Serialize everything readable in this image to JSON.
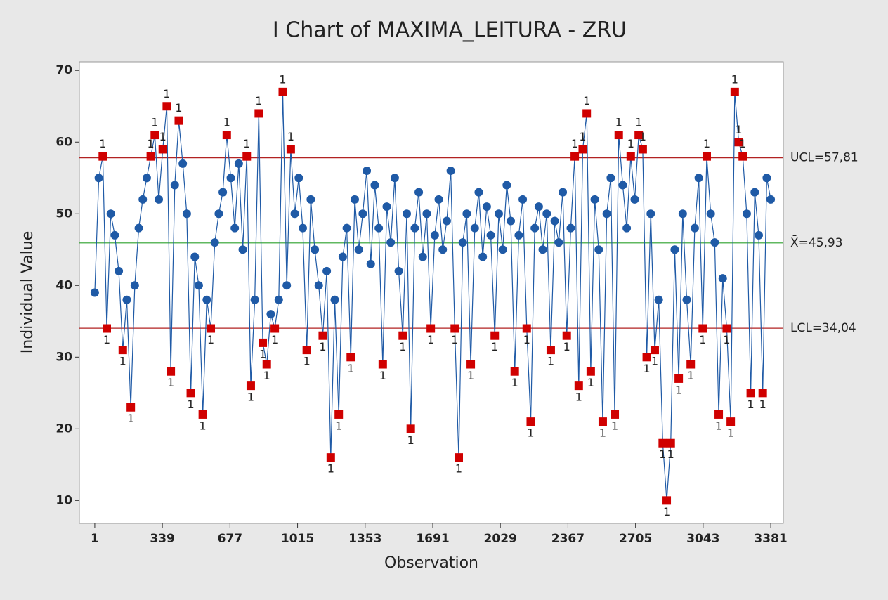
{
  "chart_data": {
    "type": "control",
    "title": "I Chart of MAXIMA_LEITURA - ZRU",
    "x_label": "Observation",
    "y_label": "Individual Value",
    "color": "#1f5aa6",
    "out_color": "#d00000",
    "flag_label": "1",
    "xlim": [
      -76,
      3444
    ],
    "ylim": [
      6.8,
      71.2
    ],
    "xticks": [
      1,
      339,
      677,
      1015,
      1353,
      1691,
      2029,
      2367,
      2705,
      3043,
      3381
    ],
    "yticks": [
      10,
      20,
      30,
      40,
      50,
      60,
      70
    ],
    "limits": [
      {
        "value": 57.81,
        "label": "UCL=57,81",
        "color": "#b22222"
      },
      {
        "value": 45.93,
        "label": "X̄=45,93",
        "color": "#2ca02c"
      },
      {
        "value": 34.04,
        "label": "LCL=34,04",
        "color": "#b22222"
      }
    ],
    "x": [
      1,
      21,
      41,
      61,
      81,
      101,
      121,
      141,
      161,
      181,
      201,
      221,
      241,
      261,
      281,
      301,
      321,
      341,
      361,
      381,
      401,
      421,
      441,
      461,
      481,
      501,
      521,
      541,
      561,
      581,
      601,
      621,
      641,
      661,
      681,
      701,
      721,
      741,
      761,
      781,
      801,
      821,
      841,
      861,
      881,
      901,
      921,
      941,
      961,
      981,
      1001,
      1021,
      1041,
      1061,
      1081,
      1101,
      1121,
      1141,
      1161,
      1181,
      1201,
      1221,
      1241,
      1261,
      1281,
      1301,
      1321,
      1341,
      1361,
      1381,
      1401,
      1421,
      1441,
      1461,
      1481,
      1501,
      1521,
      1541,
      1561,
      1581,
      1601,
      1621,
      1641,
      1661,
      1681,
      1701,
      1721,
      1741,
      1761,
      1781,
      1801,
      1821,
      1841,
      1861,
      1881,
      1901,
      1921,
      1941,
      1961,
      1981,
      2001,
      2021,
      2041,
      2061,
      2081,
      2101,
      2121,
      2141,
      2161,
      2181,
      2201,
      2221,
      2241,
      2261,
      2281,
      2301,
      2321,
      2341,
      2361,
      2381,
      2401,
      2421,
      2441,
      2461,
      2481,
      2501,
      2521,
      2541,
      2561,
      2581,
      2601,
      2621,
      2641,
      2661,
      2681,
      2701,
      2721,
      2741,
      2761,
      2781,
      2801,
      2821,
      2841,
      2861,
      2881,
      2901,
      2921,
      2941,
      2961,
      2981,
      3001,
      3021,
      3041,
      3061,
      3081,
      3101,
      3121,
      3141,
      3161,
      3181,
      3201,
      3221,
      3241,
      3261,
      3281,
      3301,
      3321,
      3341,
      3361,
      3381
    ],
    "values": [
      39,
      55,
      58,
      34,
      50,
      47,
      42,
      31,
      38,
      23,
      40,
      48,
      52,
      55,
      58,
      61,
      52,
      59,
      65,
      28,
      54,
      63,
      57,
      50,
      25,
      44,
      40,
      22,
      38,
      34,
      46,
      50,
      53,
      61,
      55,
      48,
      57,
      45,
      58,
      26,
      38,
      64,
      32,
      29,
      36,
      34,
      38,
      67,
      40,
      59,
      50,
      55,
      48,
      31,
      52,
      45,
      40,
      33,
      42,
      16,
      38,
      22,
      44,
      48,
      30,
      52,
      45,
      50,
      56,
      43,
      54,
      48,
      29,
      51,
      46,
      55,
      42,
      33,
      50,
      20,
      48,
      53,
      44,
      50,
      34,
      47,
      52,
      45,
      49,
      56,
      34,
      16,
      46,
      50,
      29,
      48,
      53,
      44,
      51,
      47,
      33,
      50,
      45,
      54,
      49,
      28,
      47,
      52,
      34,
      21,
      48,
      51,
      45,
      50,
      31,
      49,
      46,
      53,
      33,
      48,
      58,
      26,
      59,
      64,
      28,
      52,
      45,
      21,
      50,
      55,
      22,
      61,
      54,
      48,
      58,
      52,
      61,
      59,
      30,
      50,
      31,
      38,
      18,
      10,
      18,
      45,
      27,
      50,
      38,
      29,
      48,
      55,
      34,
      58,
      50,
      46,
      22,
      41,
      34,
      21,
      67,
      60,
      58,
      50,
      25,
      53,
      47,
      25,
      55,
      52
    ]
  }
}
